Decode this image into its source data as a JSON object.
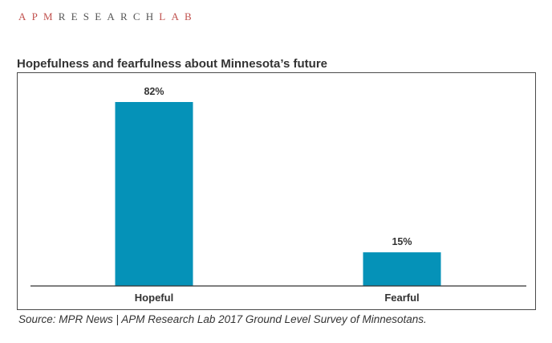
{
  "brand": {
    "apm": "APM",
    "research": "RESEARCH",
    "lab": "LAB"
  },
  "colors": {
    "bar": "#0592b8",
    "axis": "#333333",
    "brand_accent": "#c0504d"
  },
  "chart_data": {
    "type": "bar",
    "title": "Hopefulness and fearfulness about Minnesota’s future",
    "categories": [
      "Hopeful",
      "Fearful"
    ],
    "values": [
      82,
      15
    ],
    "data_labels": [
      "82%",
      "15%"
    ],
    "unit": "%",
    "ylim": [
      0,
      82
    ],
    "xlabel": "",
    "ylabel": "",
    "grid": false,
    "legend": "none"
  },
  "source": "Source: MPR News | APM Research Lab 2017 Ground Level Survey of Minnesotans."
}
